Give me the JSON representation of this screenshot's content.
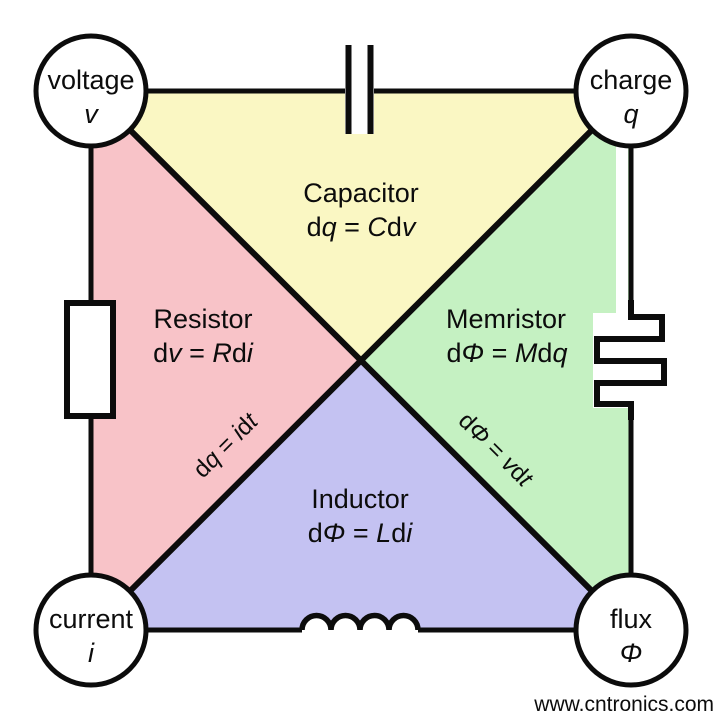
{
  "nodes": {
    "voltage": {
      "label": "voltage",
      "symbol": "v"
    },
    "charge": {
      "label": "charge",
      "symbol": "q"
    },
    "current": {
      "label": "current",
      "symbol": "i"
    },
    "flux": {
      "label": "flux",
      "symbol": "Φ"
    }
  },
  "regions": {
    "capacitor": {
      "name": "Capacitor",
      "formula": "d*q* = *C*d*v*",
      "color": "#faf7c3"
    },
    "resistor": {
      "name": "Resistor",
      "formula": "d*v* = *R*d*i*",
      "color": "#f8c3c8"
    },
    "memristor": {
      "name": "Memristor",
      "formula": "d*Φ* = *M*d*q*",
      "color": "#c5f1c2"
    },
    "inductor": {
      "name": "Inductor",
      "formula": "d*Φ* = *L*d*i*",
      "color": "#c4c2f2"
    }
  },
  "diagonals": {
    "charge_current": "d*q* = *i*d*t*",
    "voltage_flux": "d*Φ* = *v*d*t*"
  },
  "icons": {
    "capacitor": "capacitor-symbol",
    "resistor": "resistor-symbol",
    "memristor": "memristor-symbol",
    "inductor": "inductor-symbol"
  },
  "watermark": {
    "text": "www.cntronics.com",
    "color": "#c8e6b9"
  },
  "line_color": "#0c0c0c"
}
